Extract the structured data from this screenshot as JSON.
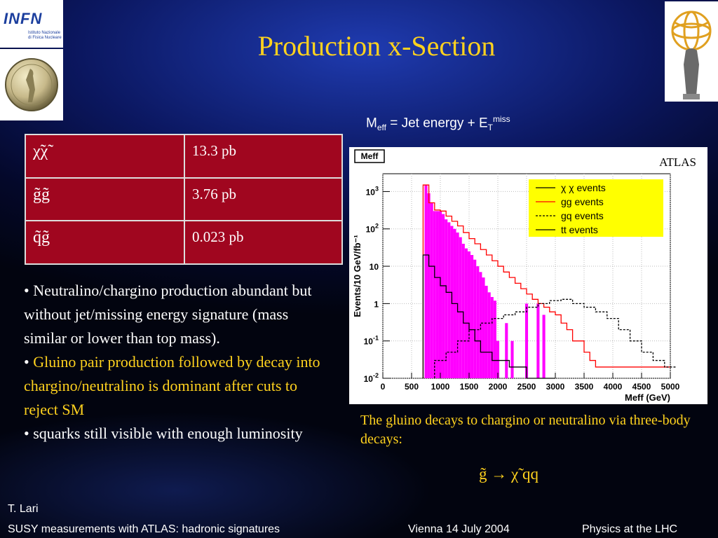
{
  "logos": {
    "infn_text": "INFN",
    "infn_subtext": "Istituto Nazionale di Fisica Nucleare"
  },
  "title": "Production x-Section",
  "meff_equation": {
    "main": "M",
    "sub": "eff",
    "mid": " = Jet energy + E",
    "sub2": "T",
    "sup": "miss"
  },
  "table": {
    "rows": [
      {
        "process": "χ̃χ̃",
        "xsec": "13.3 pb"
      },
      {
        "process": "g̃g̃",
        "xsec": "3.76 pb"
      },
      {
        "process": "q̃g̃",
        "xsec": "0.023 pb"
      }
    ]
  },
  "bullets": [
    {
      "text": "• Neutralino/chargino production abundant but without jet/missing energy signature (mass similar or lower than top mass).",
      "highlight": false
    },
    {
      "text": "Gluino pair production followed by decay into chargino/neutralino is dominant after cuts to reject SM",
      "prefix": "• ",
      "highlight": true
    },
    {
      "text": "• squarks still visible with enough luminosity",
      "highlight": false
    }
  ],
  "chart_data": {
    "type": "line",
    "title": "Meff",
    "xlabel": "Meff (GeV)",
    "ylabel": "Events/10 GeV/fb⁻¹",
    "annotation": "ATLAS",
    "xlim": [
      0,
      5000
    ],
    "ylim": [
      0.01,
      3000
    ],
    "yscale": "log",
    "grid": true,
    "legend_position": "top-right",
    "xticks": [
      "0",
      "500",
      "1000",
      "1500",
      "2000",
      "2500",
      "3000",
      "3500",
      "4000",
      "4500",
      "5000"
    ],
    "yticks": [
      {
        "v": 1000,
        "base": "10",
        "exp": "3"
      },
      {
        "v": 100,
        "base": "10",
        "exp": "2"
      },
      {
        "v": 10,
        "base": "10",
        "exp": ""
      },
      {
        "v": 1,
        "base": "1",
        "exp": ""
      },
      {
        "v": 0.1,
        "base": "10",
        "exp": "-1"
      },
      {
        "v": 0.01,
        "base": "10",
        "exp": "-2"
      }
    ],
    "series": [
      {
        "name": "χ χ events",
        "color": "#ff00ff",
        "style": "fill",
        "x": [
          750,
          800,
          850,
          900,
          950,
          1000,
          1050,
          1100,
          1150,
          1200,
          1250,
          1300,
          1350,
          1400,
          1450,
          1500,
          1550,
          1600,
          1650,
          1700,
          1750,
          1800,
          1850,
          1900,
          1950,
          2000,
          2050,
          2100,
          2150,
          2200,
          2250,
          2300,
          2350,
          2400,
          2450,
          2500,
          2550,
          2600,
          2650,
          2700,
          2750,
          2800,
          2850,
          2900,
          2950,
          3000
        ],
        "values": [
          1500,
          900,
          500,
          300,
          300,
          300,
          250,
          180,
          150,
          120,
          100,
          80,
          60,
          40,
          30,
          25,
          20,
          15,
          10,
          7,
          5,
          3,
          2,
          1.5,
          1.2,
          0.1,
          0,
          0,
          0.3,
          0,
          0.1,
          0,
          0,
          0,
          0,
          1,
          0,
          0,
          0,
          1,
          0,
          0.5,
          0,
          0,
          0,
          0
        ]
      },
      {
        "name": "gg events",
        "color": "#ff0000",
        "style": "solid",
        "x": [
          750,
          850,
          950,
          1050,
          1150,
          1250,
          1350,
          1450,
          1550,
          1650,
          1750,
          1850,
          1950,
          2050,
          2150,
          2250,
          2350,
          2450,
          2550,
          2650,
          2750,
          2850,
          2950,
          3050,
          3150,
          3250,
          3350,
          3450,
          3550,
          3650,
          3750,
          3850,
          3950,
          4050,
          4150,
          4250,
          4350,
          4450,
          4550,
          4650,
          4750,
          4850,
          4950
        ],
        "values": [
          1500,
          500,
          320,
          300,
          220,
          160,
          120,
          80,
          55,
          40,
          28,
          20,
          14,
          10,
          7,
          5,
          3.5,
          2.5,
          1.8,
          1.3,
          1,
          0.8,
          0.6,
          0.5,
          0.3,
          0.2,
          0.1,
          0.1,
          0.05,
          0.03,
          0.02,
          0.02,
          0.02,
          0.02,
          0.02,
          0.02,
          0.02,
          0.02,
          0.02,
          0.02,
          0.02,
          0.02,
          0.02
        ]
      },
      {
        "name": "gq events",
        "color": "#000000",
        "style": "dashed",
        "x": [
          1000,
          1200,
          1400,
          1600,
          1800,
          2000,
          2200,
          2400,
          2600,
          2800,
          3000,
          3200,
          3400,
          3600,
          3800,
          4000,
          4200,
          4400,
          4600,
          4800,
          5000
        ],
        "values": [
          0.03,
          0.05,
          0.1,
          0.2,
          0.3,
          0.4,
          0.5,
          0.6,
          0.8,
          1,
          1.2,
          1.3,
          1,
          0.8,
          0.6,
          0.4,
          0.2,
          0.1,
          0.05,
          0.03,
          0.02
        ]
      },
      {
        "name": "tt events",
        "color": "#000000",
        "style": "solid",
        "x": [
          750,
          850,
          950,
          1050,
          1150,
          1250,
          1350,
          1450,
          1550,
          1650,
          1750,
          1850,
          1950,
          2050,
          2150,
          2250,
          2350,
          2450,
          2550,
          2650,
          2750,
          2850,
          2950
        ],
        "values": [
          20,
          10,
          5,
          3,
          2,
          1,
          0.6,
          0.3,
          0.2,
          0.1,
          0.05,
          0.05,
          0.03,
          0.03,
          0.03,
          0.02,
          0.02,
          0.02,
          0.01,
          0.01,
          0.01,
          0.01,
          0.01
        ]
      }
    ]
  },
  "caption": "The gluino decays to chargino or neutralino via three-body decays:",
  "decay": "g̃ → χ̃ qq",
  "footer": {
    "author": "T. Lari",
    "subtitle": "SUSY measurements with ATLAS: hadronic signatures",
    "place_date": "Vienna 14 July 2004",
    "event": "Physics at  the LHC"
  }
}
